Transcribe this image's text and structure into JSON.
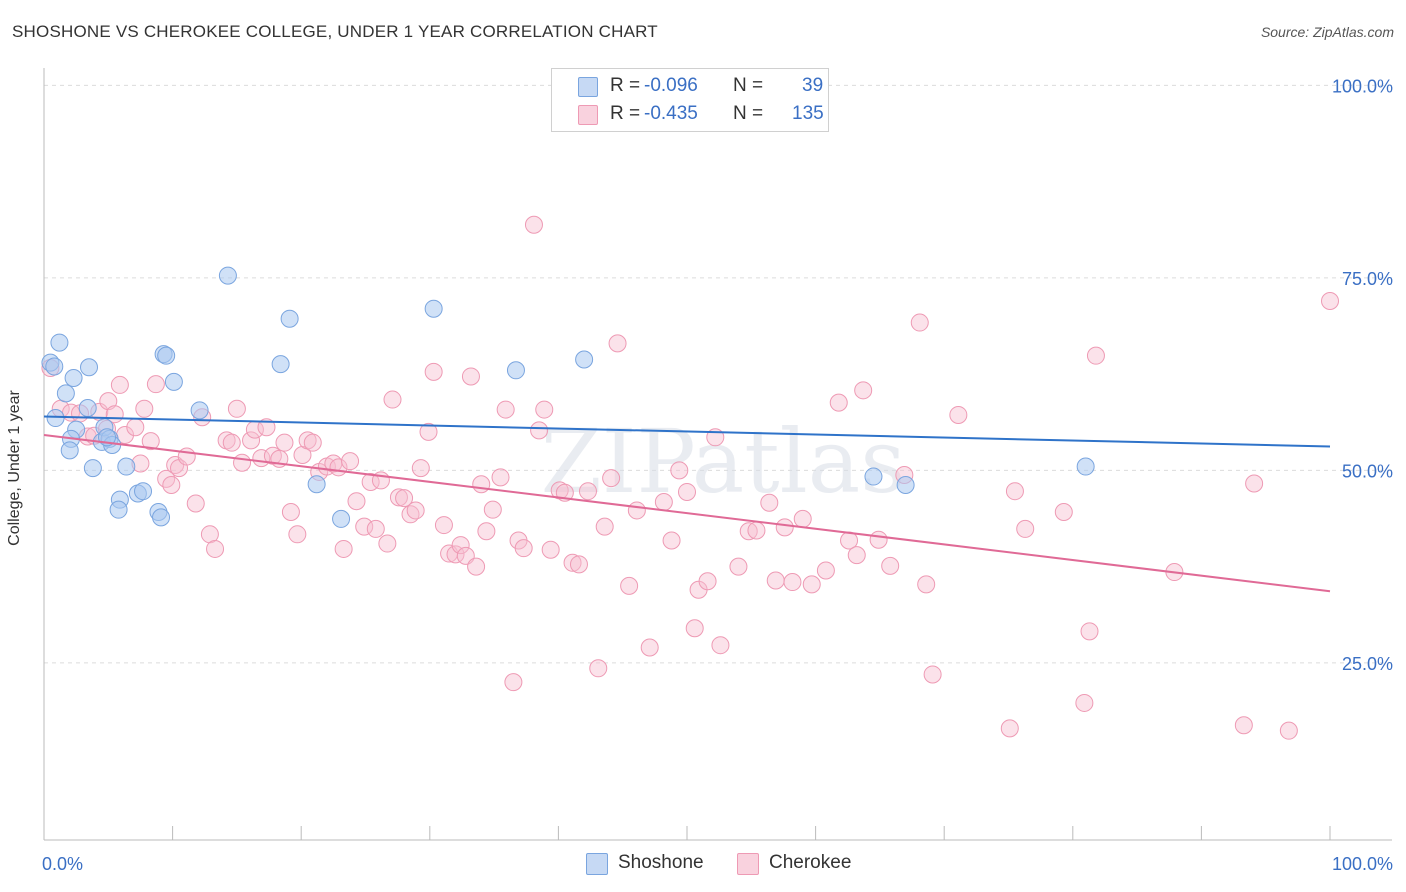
{
  "title": "SHOSHONE VS CHEROKEE COLLEGE, UNDER 1 YEAR CORRELATION CHART",
  "source": "Source: ZipAtlas.com",
  "watermark": "ZIPatlas",
  "legend": {
    "rows": [
      {
        "label": "R =",
        "r": "-0.096",
        "n_label": "N =",
        "n": "39"
      },
      {
        "label": "R =",
        "r": "-0.435",
        "n_label": "N =",
        "n": "135"
      }
    ],
    "bottom": [
      "Shoshone",
      "Cherokee"
    ]
  },
  "colors": {
    "shoshone_fill": "#aac8f0",
    "shoshone_stroke": "#7aa5df",
    "shoshone_line": "#2f73c9",
    "cherokee_fill": "#f7bfd0",
    "cherokee_stroke": "#ee9ab4",
    "cherokee_line": "#e06a96",
    "axis_label": "#3a6fc4"
  },
  "chart_data": {
    "type": "scatter",
    "title": "SHOSHONE VS CHEROKEE COLLEGE, UNDER 1 YEAR CORRELATION CHART",
    "xlabel": "",
    "ylabel": "College, Under 1 year",
    "xlim": [
      0,
      100
    ],
    "ylim": [
      2,
      102
    ],
    "x_tick_labels": {
      "left": "0.0%",
      "right": "100.0%"
    },
    "y_ticks": [
      {
        "value": 100,
        "label": "100.0%"
      },
      {
        "value": 75,
        "label": "75.0%"
      },
      {
        "value": 50,
        "label": "50.0%"
      },
      {
        "value": 25,
        "label": "25.0%"
      }
    ],
    "series": [
      {
        "name": "Shoshone",
        "R": -0.096,
        "N": 39,
        "trend": {
          "x": [
            0,
            100
          ],
          "y": [
            57.0,
            53.1
          ]
        },
        "points": [
          [
            0.5,
            64.0
          ],
          [
            1.2,
            66.6
          ],
          [
            0.8,
            63.5
          ],
          [
            1.7,
            60.0
          ],
          [
            2.3,
            62.0
          ],
          [
            3.5,
            63.4
          ],
          [
            3.4,
            58.1
          ],
          [
            0.9,
            56.8
          ],
          [
            2.5,
            55.3
          ],
          [
            2.1,
            54.1
          ],
          [
            2.0,
            52.6
          ],
          [
            3.8,
            50.3
          ],
          [
            4.5,
            53.7
          ],
          [
            4.7,
            55.6
          ],
          [
            5.1,
            54.1
          ],
          [
            5.3,
            53.3
          ],
          [
            6.4,
            50.5
          ],
          [
            5.9,
            46.2
          ],
          [
            5.8,
            44.9
          ],
          [
            7.3,
            47.0
          ],
          [
            7.7,
            47.3
          ],
          [
            8.9,
            44.6
          ],
          [
            9.1,
            43.9
          ],
          [
            9.3,
            65.1
          ],
          [
            9.5,
            64.9
          ],
          [
            10.1,
            61.5
          ],
          [
            12.1,
            57.8
          ],
          [
            14.3,
            75.3
          ],
          [
            18.4,
            63.8
          ],
          [
            19.1,
            69.7
          ],
          [
            21.2,
            48.2
          ],
          [
            23.1,
            43.7
          ],
          [
            30.3,
            71.0
          ],
          [
            36.7,
            63.0
          ],
          [
            42.0,
            64.4
          ],
          [
            64.5,
            49.2
          ],
          [
            67.0,
            48.1
          ],
          [
            81.0,
            50.5
          ],
          [
            4.9,
            54.3
          ]
        ]
      },
      {
        "name": "Cherokee",
        "R": -0.435,
        "N": 135,
        "trend": {
          "x": [
            0,
            100
          ],
          "y": [
            54.6,
            34.3
          ]
        },
        "points": [
          [
            0.5,
            63.3
          ],
          [
            1.3,
            58.0
          ],
          [
            2.1,
            57.5
          ],
          [
            2.8,
            57.4
          ],
          [
            3.4,
            54.4
          ],
          [
            3.9,
            54.5
          ],
          [
            4.3,
            57.6
          ],
          [
            4.9,
            55.4
          ],
          [
            5.0,
            59.0
          ],
          [
            5.5,
            57.3
          ],
          [
            5.9,
            61.1
          ],
          [
            6.3,
            54.6
          ],
          [
            7.1,
            55.6
          ],
          [
            7.5,
            50.9
          ],
          [
            7.8,
            58.0
          ],
          [
            8.3,
            53.8
          ],
          [
            8.7,
            61.2
          ],
          [
            9.5,
            48.9
          ],
          [
            9.9,
            48.1
          ],
          [
            10.2,
            50.7
          ],
          [
            10.5,
            50.3
          ],
          [
            11.1,
            51.8
          ],
          [
            11.8,
            45.7
          ],
          [
            12.3,
            56.9
          ],
          [
            12.9,
            41.7
          ],
          [
            13.3,
            39.8
          ],
          [
            14.2,
            53.9
          ],
          [
            14.6,
            53.6
          ],
          [
            15.0,
            58.0
          ],
          [
            15.4,
            51.0
          ],
          [
            16.1,
            53.9
          ],
          [
            16.4,
            55.3
          ],
          [
            16.9,
            51.6
          ],
          [
            17.3,
            55.6
          ],
          [
            17.8,
            51.9
          ],
          [
            18.3,
            51.5
          ],
          [
            18.7,
            53.6
          ],
          [
            19.2,
            44.6
          ],
          [
            19.7,
            41.7
          ],
          [
            20.1,
            52.0
          ],
          [
            20.5,
            53.9
          ],
          [
            20.9,
            53.6
          ],
          [
            21.4,
            49.8
          ],
          [
            22.0,
            50.5
          ],
          [
            22.5,
            50.9
          ],
          [
            22.9,
            50.4
          ],
          [
            23.3,
            39.8
          ],
          [
            23.8,
            51.2
          ],
          [
            24.3,
            46.0
          ],
          [
            24.9,
            42.7
          ],
          [
            25.4,
            48.5
          ],
          [
            25.8,
            42.4
          ],
          [
            26.2,
            48.7
          ],
          [
            26.7,
            40.5
          ],
          [
            27.1,
            59.2
          ],
          [
            27.6,
            46.5
          ],
          [
            28.0,
            46.4
          ],
          [
            28.5,
            44.3
          ],
          [
            28.9,
            44.8
          ],
          [
            29.3,
            50.3
          ],
          [
            29.9,
            55.0
          ],
          [
            30.3,
            62.8
          ],
          [
            31.1,
            42.9
          ],
          [
            31.5,
            39.2
          ],
          [
            32.0,
            39.1
          ],
          [
            32.4,
            40.3
          ],
          [
            32.8,
            38.9
          ],
          [
            33.2,
            62.2
          ],
          [
            33.6,
            37.5
          ],
          [
            34.0,
            48.2
          ],
          [
            34.4,
            42.1
          ],
          [
            34.9,
            44.9
          ],
          [
            35.5,
            49.1
          ],
          [
            35.9,
            57.9
          ],
          [
            36.5,
            22.5
          ],
          [
            36.9,
            40.9
          ],
          [
            37.3,
            39.9
          ],
          [
            38.1,
            81.9
          ],
          [
            38.5,
            55.2
          ],
          [
            38.9,
            57.9
          ],
          [
            39.4,
            39.7
          ],
          [
            40.1,
            47.4
          ],
          [
            40.5,
            47.1
          ],
          [
            41.1,
            38.0
          ],
          [
            41.6,
            37.8
          ],
          [
            42.3,
            47.3
          ],
          [
            43.1,
            24.3
          ],
          [
            43.6,
            42.7
          ],
          [
            44.1,
            49.0
          ],
          [
            44.6,
            66.5
          ],
          [
            45.5,
            35.0
          ],
          [
            46.1,
            44.8
          ],
          [
            47.1,
            27.0
          ],
          [
            48.2,
            45.9
          ],
          [
            48.8,
            40.9
          ],
          [
            49.4,
            50.0
          ],
          [
            50.0,
            47.2
          ],
          [
            50.6,
            29.5
          ],
          [
            50.9,
            34.5
          ],
          [
            51.6,
            35.6
          ],
          [
            52.2,
            54.3
          ],
          [
            52.6,
            27.3
          ],
          [
            54.0,
            37.5
          ],
          [
            54.8,
            42.1
          ],
          [
            55.4,
            42.2
          ],
          [
            56.4,
            45.8
          ],
          [
            56.9,
            35.7
          ],
          [
            57.6,
            42.6
          ],
          [
            58.2,
            35.5
          ],
          [
            59.0,
            43.7
          ],
          [
            59.7,
            35.2
          ],
          [
            60.8,
            37.0
          ],
          [
            61.8,
            58.8
          ],
          [
            62.6,
            40.9
          ],
          [
            63.2,
            39.0
          ],
          [
            63.7,
            60.4
          ],
          [
            64.9,
            41.0
          ],
          [
            65.8,
            37.6
          ],
          [
            66.9,
            49.4
          ],
          [
            68.1,
            69.2
          ],
          [
            68.6,
            35.2
          ],
          [
            69.1,
            23.5
          ],
          [
            71.1,
            57.2
          ],
          [
            75.1,
            16.5
          ],
          [
            75.5,
            47.3
          ],
          [
            76.3,
            42.4
          ],
          [
            79.3,
            44.6
          ],
          [
            80.9,
            19.8
          ],
          [
            81.3,
            29.1
          ],
          [
            81.8,
            64.9
          ],
          [
            94.1,
            48.3
          ],
          [
            93.3,
            16.9
          ],
          [
            96.8,
            16.2
          ],
          [
            100.0,
            72.0
          ],
          [
            87.9,
            36.8
          ]
        ]
      }
    ]
  }
}
